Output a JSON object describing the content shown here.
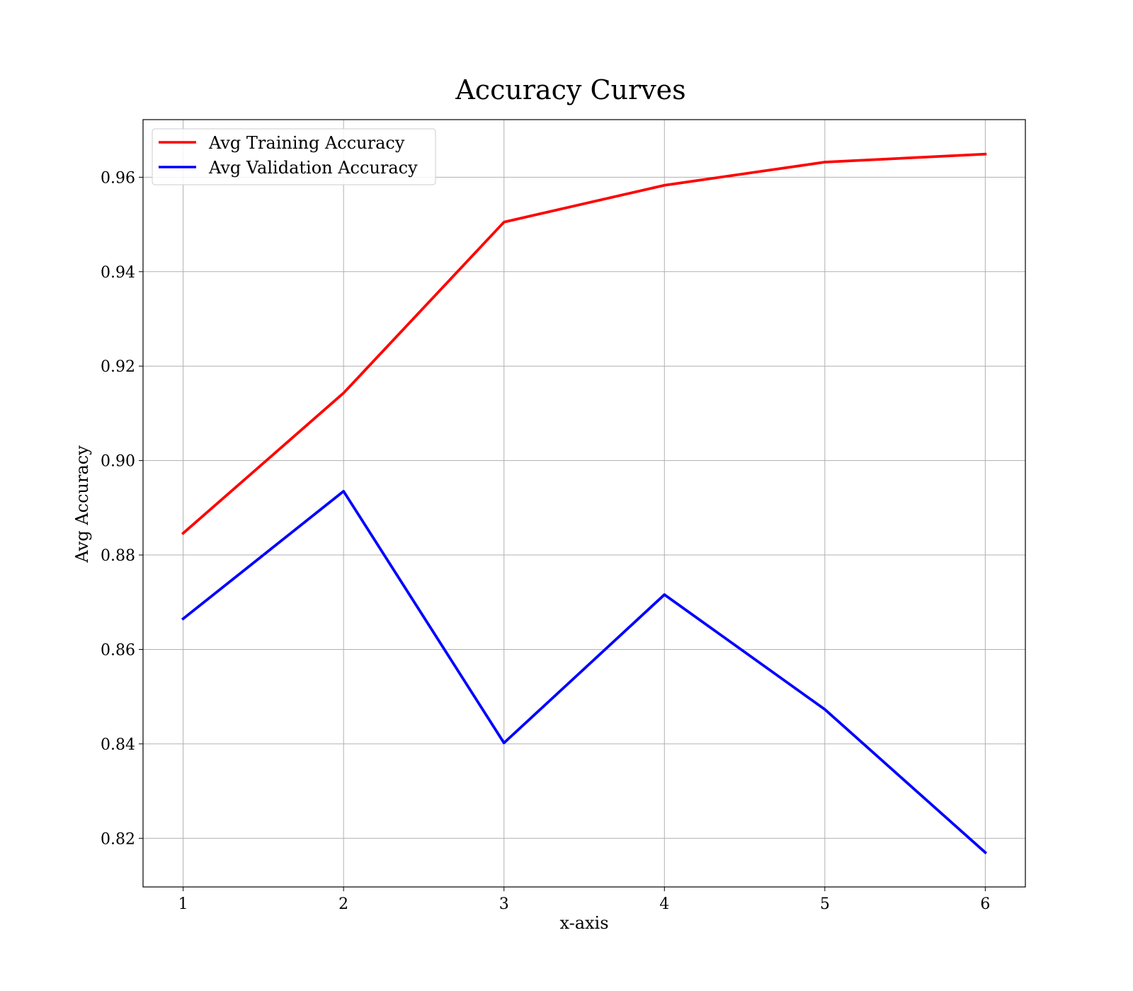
{
  "chart_data": {
    "type": "line",
    "title": "Accuracy Curves",
    "xlabel": "x-axis",
    "ylabel": "Avg Accuracy",
    "x": [
      1,
      2,
      3,
      4,
      5,
      6
    ],
    "xticks": [
      "1",
      "2",
      "3",
      "4",
      "5",
      "6"
    ],
    "yticks": [
      "0.82",
      "0.84",
      "0.86",
      "0.88",
      "0.90",
      "0.92",
      "0.94",
      "0.96"
    ],
    "ytick_values": [
      0.82,
      0.84,
      0.86,
      0.88,
      0.9,
      0.92,
      0.94,
      0.96
    ],
    "xlim": [
      0.75,
      6.25
    ],
    "ylim": [
      0.8097,
      0.9722
    ],
    "grid": true,
    "legend_position": "top-left",
    "series": [
      {
        "name": "Avg Training Accuracy",
        "color": "#ff0000",
        "values": [
          0.8846,
          0.9143,
          0.9505,
          0.9583,
          0.9632,
          0.9649
        ]
      },
      {
        "name": "Avg Validation Accuracy",
        "color": "#0000ff",
        "values": [
          0.8665,
          0.8935,
          0.8402,
          0.8716,
          0.8473,
          0.817
        ]
      }
    ]
  }
}
